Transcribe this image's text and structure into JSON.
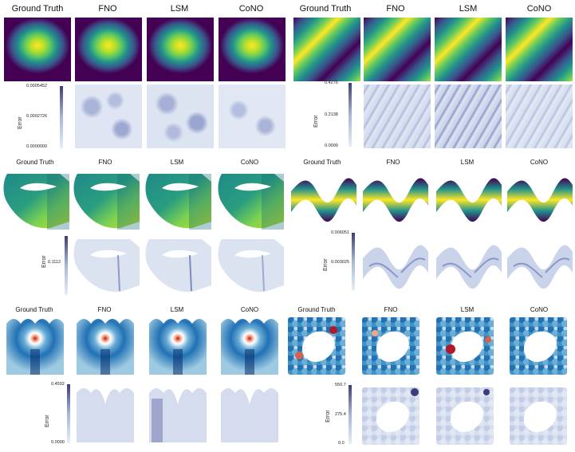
{
  "columns": [
    "Ground Truth",
    "FNO",
    "LSM",
    "CoNO"
  ],
  "error_label": "Error",
  "colorbars": {
    "a": {
      "max": "0.0005452",
      "mid": "0.0002726",
      "min": "0.0000000"
    },
    "b": {
      "max": "0.4276",
      "mid": "0.2138",
      "min": "0.0000"
    },
    "c": {
      "mid": "0.1112"
    },
    "d": {
      "max": "0.006051",
      "mid": "0.003025"
    },
    "e": {
      "max": "0.4592",
      "min": "0.0000"
    },
    "f": {
      "max": "550.7",
      "mid": "275.4",
      "min": "0.0"
    }
  },
  "colors": {
    "viridis_dark": "#440154",
    "viridis_mid": "#21918c",
    "viridis_bright": "#fde725",
    "error_light": "#e6eef7",
    "error_dark": "#3e3b7c",
    "blue_dark": "#08306b",
    "red_peak": "#b2182b"
  }
}
